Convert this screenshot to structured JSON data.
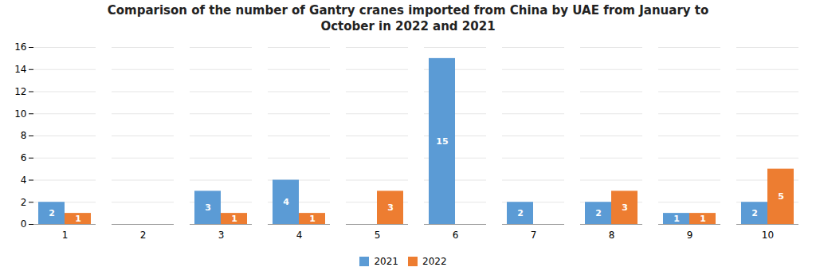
{
  "chart_data": {
    "type": "bar",
    "title": "Comparison of the number of Gantry cranes imported from China by UAE from January to\nOctober in 2022 and 2021",
    "categories": [
      "1",
      "2",
      "3",
      "4",
      "5",
      "6",
      "7",
      "8",
      "9",
      "10"
    ],
    "series": [
      {
        "name": "2021",
        "color": "#5B9BD5",
        "values": [
          2,
          0,
          3,
          4,
          0,
          15,
          2,
          2,
          1,
          2
        ]
      },
      {
        "name": "2022",
        "color": "#ED7D31",
        "values": [
          1,
          0,
          1,
          1,
          3,
          0,
          0,
          3,
          1,
          5
        ]
      }
    ],
    "ylim": [
      0,
      16
    ],
    "yticks": [
      0,
      2,
      4,
      6,
      8,
      10,
      12,
      14,
      16
    ],
    "grid": true,
    "legend": "bottom",
    "data_labels": true
  }
}
